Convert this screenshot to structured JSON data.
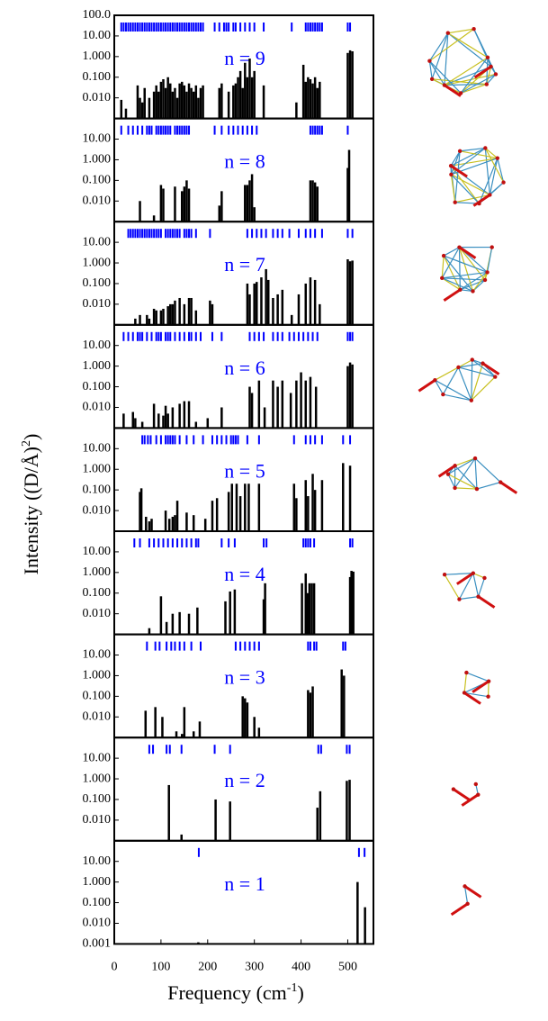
{
  "axis_labels": {
    "y": [
      "Intensity ((D/Å)",
      "2",
      ")"
    ],
    "x": [
      "Frequency (cm",
      "-1",
      ")"
    ]
  },
  "chart_data": [
    {
      "type": "bar",
      "title": "n = 9",
      "log_y": true,
      "color": "#000000",
      "marker_color": "#0000ff",
      "title_color": "#0000ff",
      "xlim": [
        0,
        555
      ],
      "ylim": [
        0.001,
        100
      ],
      "yticks": [
        {
          "value": 100,
          "label": "100.0"
        },
        {
          "value": 10,
          "label": "10.00"
        },
        {
          "value": 1,
          "label": "1.000"
        },
        {
          "value": 0.1,
          "label": "0.100"
        },
        {
          "value": 0.01,
          "label": "0.010"
        }
      ],
      "x": [
        15,
        25,
        50,
        55,
        60,
        65,
        75,
        85,
        90,
        95,
        100,
        105,
        110,
        115,
        120,
        125,
        130,
        135,
        140,
        145,
        150,
        155,
        160,
        165,
        170,
        175,
        180,
        185,
        190,
        225,
        230,
        245,
        255,
        260,
        265,
        270,
        275,
        280,
        285,
        290,
        295,
        300,
        320,
        390,
        405,
        410,
        415,
        420,
        425,
        430,
        435,
        440,
        500,
        505,
        510
      ],
      "values": [
        0.008,
        0.003,
        0.04,
        0.01,
        0.006,
        0.03,
        0.01,
        0.02,
        0.04,
        0.02,
        0.06,
        0.08,
        0.03,
        0.1,
        0.05,
        0.02,
        0.03,
        0.01,
        0.05,
        0.06,
        0.04,
        0.02,
        0.05,
        0.03,
        0.02,
        0.04,
        0.01,
        0.03,
        0.04,
        0.03,
        0.05,
        0.02,
        0.04,
        0.05,
        0.1,
        0.2,
        0.03,
        0.5,
        0.1,
        0.8,
        0.1,
        0.2,
        0.04,
        0.006,
        0.4,
        0.06,
        0.1,
        0.08,
        0.05,
        0.1,
        0.03,
        0.06,
        1.5,
        2.0,
        1.8
      ],
      "marker_x": [
        15,
        20,
        25,
        30,
        35,
        40,
        45,
        50,
        55,
        60,
        65,
        70,
        75,
        80,
        85,
        90,
        95,
        100,
        105,
        110,
        115,
        120,
        125,
        130,
        135,
        140,
        145,
        150,
        155,
        160,
        165,
        170,
        175,
        180,
        185,
        190,
        215,
        225,
        235,
        240,
        245,
        255,
        260,
        270,
        280,
        290,
        300,
        320,
        380,
        410,
        415,
        420,
        425,
        430,
        435,
        440,
        445,
        500,
        505
      ]
    },
    {
      "type": "bar",
      "title": "n = 8",
      "log_y": true,
      "color": "#000000",
      "marker_color": "#0000ff",
      "title_color": "#0000ff",
      "xlim": [
        0,
        555
      ],
      "ylim": [
        0.001,
        100
      ],
      "yticks": [
        {
          "value": 10,
          "label": "10.00"
        },
        {
          "value": 1,
          "label": "1.000"
        },
        {
          "value": 0.1,
          "label": "0.100"
        },
        {
          "value": 0.01,
          "label": "0.010"
        }
      ],
      "x": [
        50,
        55,
        85,
        100,
        105,
        130,
        145,
        150,
        155,
        160,
        225,
        230,
        280,
        285,
        290,
        295,
        300,
        420,
        425,
        430,
        435,
        500,
        503
      ],
      "values": [
        0.001,
        0.01,
        0.002,
        0.06,
        0.04,
        0.05,
        0.03,
        0.05,
        0.1,
        0.04,
        0.006,
        0.03,
        0.06,
        0.06,
        0.1,
        0.2,
        0.005,
        0.1,
        0.1,
        0.08,
        0.05,
        0.4,
        3.0
      ],
      "marker_x": [
        15,
        30,
        40,
        50,
        60,
        70,
        75,
        80,
        90,
        95,
        100,
        105,
        110,
        115,
        120,
        130,
        135,
        140,
        145,
        150,
        155,
        160,
        215,
        230,
        245,
        255,
        265,
        275,
        285,
        295,
        305,
        420,
        425,
        430,
        435,
        440,
        445,
        500
      ]
    },
    {
      "type": "bar",
      "title": "n = 7",
      "log_y": true,
      "color": "#000000",
      "marker_color": "#0000ff",
      "title_color": "#0000ff",
      "xlim": [
        0,
        555
      ],
      "ylim": [
        0.001,
        100
      ],
      "yticks": [
        {
          "value": 10,
          "label": "10.00"
        },
        {
          "value": 1,
          "label": "1.000"
        },
        {
          "value": 0.1,
          "label": "0.100"
        },
        {
          "value": 0.01,
          "label": "0.010"
        }
      ],
      "x": [
        30,
        45,
        55,
        70,
        75,
        85,
        90,
        100,
        105,
        115,
        120,
        125,
        130,
        140,
        150,
        160,
        165,
        175,
        205,
        210,
        285,
        290,
        300,
        305,
        315,
        325,
        330,
        340,
        350,
        360,
        380,
        395,
        410,
        420,
        430,
        440,
        500,
        505,
        510
      ],
      "values": [
        0.001,
        0.002,
        0.003,
        0.003,
        0.002,
        0.006,
        0.005,
        0.005,
        0.006,
        0.008,
        0.01,
        0.01,
        0.015,
        0.02,
        0.01,
        0.02,
        0.02,
        0.005,
        0.015,
        0.01,
        0.1,
        0.03,
        0.1,
        0.12,
        0.2,
        0.5,
        0.15,
        0.02,
        0.03,
        0.05,
        0.003,
        0.03,
        0.1,
        0.2,
        0.15,
        0.01,
        1.5,
        1.2,
        1.3
      ],
      "marker_x": [
        30,
        35,
        40,
        45,
        50,
        55,
        60,
        65,
        70,
        75,
        80,
        85,
        90,
        95,
        100,
        110,
        115,
        120,
        125,
        130,
        135,
        140,
        150,
        155,
        160,
        165,
        175,
        205,
        285,
        295,
        305,
        315,
        325,
        340,
        350,
        360,
        375,
        395,
        410,
        420,
        430,
        445,
        500,
        510
      ]
    },
    {
      "type": "bar",
      "title": "n = 6",
      "log_y": true,
      "color": "#000000",
      "marker_color": "#0000ff",
      "title_color": "#0000ff",
      "xlim": [
        0,
        555
      ],
      "ylim": [
        0.001,
        100
      ],
      "yticks": [
        {
          "value": 10,
          "label": "10.00"
        },
        {
          "value": 1,
          "label": "1.000"
        },
        {
          "value": 0.1,
          "label": "0.100"
        },
        {
          "value": 0.01,
          "label": "0.010"
        }
      ],
      "x": [
        20,
        40,
        45,
        60,
        85,
        95,
        105,
        110,
        115,
        125,
        140,
        150,
        160,
        175,
        200,
        230,
        290,
        295,
        310,
        322,
        340,
        350,
        360,
        378,
        390,
        400,
        410,
        420,
        432,
        500,
        505,
        510
      ],
      "values": [
        0.005,
        0.006,
        0.003,
        0.002,
        0.015,
        0.005,
        0.004,
        0.012,
        0.005,
        0.01,
        0.015,
        0.02,
        0.02,
        0.002,
        0.003,
        0.01,
        0.1,
        0.05,
        0.2,
        0.01,
        0.2,
        0.1,
        0.2,
        0.05,
        0.2,
        0.5,
        0.2,
        0.3,
        0.1,
        1.0,
        1.5,
        1.2
      ],
      "marker_x": [
        20,
        30,
        40,
        50,
        55,
        60,
        70,
        80,
        90,
        95,
        100,
        110,
        115,
        120,
        130,
        140,
        150,
        160,
        165,
        175,
        185,
        210,
        230,
        290,
        300,
        310,
        320,
        340,
        350,
        360,
        375,
        385,
        395,
        405,
        415,
        425,
        435,
        500,
        505,
        510
      ]
    },
    {
      "type": "bar",
      "title": "n = 5",
      "log_y": true,
      "color": "#000000",
      "marker_color": "#0000ff",
      "title_color": "#0000ff",
      "xlim": [
        0,
        555
      ],
      "ylim": [
        0.001,
        100
      ],
      "yticks": [
        {
          "value": 10,
          "label": "10.00"
        },
        {
          "value": 1,
          "label": "1.000"
        },
        {
          "value": 0.1,
          "label": "0.100"
        },
        {
          "value": 0.01,
          "label": "0.010"
        }
      ],
      "x": [
        55,
        58,
        68,
        75,
        80,
        110,
        118,
        125,
        130,
        135,
        155,
        170,
        195,
        210,
        220,
        245,
        252,
        262,
        270,
        280,
        288,
        310,
        385,
        390,
        410,
        415,
        425,
        430,
        445,
        490,
        505
      ],
      "values": [
        0.08,
        0.12,
        0.005,
        0.003,
        0.004,
        0.01,
        0.004,
        0.005,
        0.006,
        0.03,
        0.008,
        0.006,
        0.004,
        0.03,
        0.04,
        0.08,
        0.2,
        0.2,
        0.05,
        0.2,
        0.2,
        0.2,
        0.2,
        0.04,
        0.3,
        0.05,
        0.6,
        0.1,
        0.3,
        2.0,
        1.5
      ],
      "marker_x": [
        60,
        65,
        72,
        78,
        90,
        100,
        110,
        115,
        120,
        125,
        130,
        140,
        155,
        170,
        190,
        210,
        220,
        230,
        240,
        250,
        255,
        260,
        265,
        285,
        310,
        385,
        410,
        420,
        430,
        445,
        490,
        505
      ]
    },
    {
      "type": "bar",
      "title": "n = 4",
      "log_y": true,
      "color": "#000000",
      "marker_color": "#0000ff",
      "title_color": "#0000ff",
      "xlim": [
        0,
        555
      ],
      "ylim": [
        0.001,
        100
      ],
      "yticks": [
        {
          "value": 10,
          "label": "10.00"
        },
        {
          "value": 1,
          "label": "1.000"
        },
        {
          "value": 0.1,
          "label": "0.100"
        },
        {
          "value": 0.01,
          "label": "0.010"
        }
      ],
      "x": [
        38,
        58,
        75,
        90,
        100,
        112,
        125,
        140,
        160,
        178,
        190,
        238,
        248,
        258,
        320,
        323,
        402,
        410,
        414,
        418,
        423,
        428,
        505,
        508,
        512
      ],
      "values": [
        0.001,
        0.001,
        0.002,
        0.001,
        0.07,
        0.004,
        0.01,
        0.012,
        0.01,
        0.02,
        0.001,
        0.04,
        0.12,
        0.15,
        0.05,
        0.3,
        0.3,
        0.9,
        0.1,
        0.3,
        0.3,
        0.3,
        0.6,
        1.2,
        1.1
      ],
      "marker_x": [
        43,
        55,
        75,
        85,
        95,
        105,
        115,
        125,
        135,
        145,
        155,
        165,
        175,
        180,
        230,
        245,
        258,
        320,
        326,
        405,
        410,
        415,
        420,
        428,
        505,
        510
      ]
    },
    {
      "type": "bar",
      "title": "n = 3",
      "log_y": true,
      "color": "#000000",
      "marker_color": "#0000ff",
      "title_color": "#0000ff",
      "xlim": [
        0,
        555
      ],
      "ylim": [
        0.001,
        100
      ],
      "yticks": [
        {
          "value": 10,
          "label": "10.00"
        },
        {
          "value": 1,
          "label": "1.000"
        },
        {
          "value": 0.1,
          "label": "0.100"
        },
        {
          "value": 0.01,
          "label": "0.010"
        }
      ],
      "x": [
        67,
        88,
        103,
        118,
        133,
        145,
        150,
        170,
        183,
        275,
        280,
        285,
        300,
        310,
        415,
        420,
        425,
        487,
        492
      ],
      "values": [
        0.02,
        0.03,
        0.01,
        0.001,
        0.002,
        0.0015,
        0.03,
        0.002,
        0.006,
        0.1,
        0.08,
        0.05,
        0.01,
        0.003,
        0.2,
        0.15,
        0.3,
        2.0,
        1.0
      ],
      "marker_x": [
        70,
        88,
        97,
        112,
        122,
        130,
        140,
        150,
        165,
        185,
        260,
        270,
        280,
        290,
        300,
        310,
        415,
        420,
        428,
        433,
        490,
        495
      ]
    },
    {
      "type": "bar",
      "title": "n = 2",
      "log_y": true,
      "color": "#000000",
      "marker_color": "#0000ff",
      "title_color": "#0000ff",
      "xlim": [
        0,
        555
      ],
      "ylim": [
        0.001,
        100
      ],
      "yticks": [
        {
          "value": 10,
          "label": "10.00"
        },
        {
          "value": 1,
          "label": "1.000"
        },
        {
          "value": 0.1,
          "label": "0.100"
        },
        {
          "value": 0.01,
          "label": "0.010"
        }
      ],
      "x": [
        117,
        144,
        217,
        248,
        435,
        441,
        498,
        504
      ],
      "values": [
        0.5,
        0.002,
        0.1,
        0.08,
        0.04,
        0.25,
        0.8,
        0.9
      ],
      "marker_x": [
        75,
        83,
        112,
        119,
        144,
        215,
        248,
        437,
        443,
        498,
        504
      ]
    },
    {
      "type": "bar",
      "title": "n = 1",
      "log_y": true,
      "color": "#000000",
      "marker_color": "#0000ff",
      "title_color": "#0000ff",
      "xlim": [
        0,
        555
      ],
      "ylim": [
        0.001,
        100
      ],
      "yticks": [
        {
          "value": 10,
          "label": "10.00"
        },
        {
          "value": 1,
          "label": "1.000"
        },
        {
          "value": 0.1,
          "label": "0.100"
        },
        {
          "value": 0.01,
          "label": "0.010"
        },
        {
          "value": 0.001,
          "label": "0.001"
        }
      ],
      "xticks": [
        0,
        100,
        200,
        300,
        400,
        500
      ],
      "x": [
        180,
        521,
        537
      ],
      "values": [
        0.0012,
        1.0,
        0.06
      ],
      "marker_x": [
        181,
        524,
        536
      ]
    }
  ]
}
